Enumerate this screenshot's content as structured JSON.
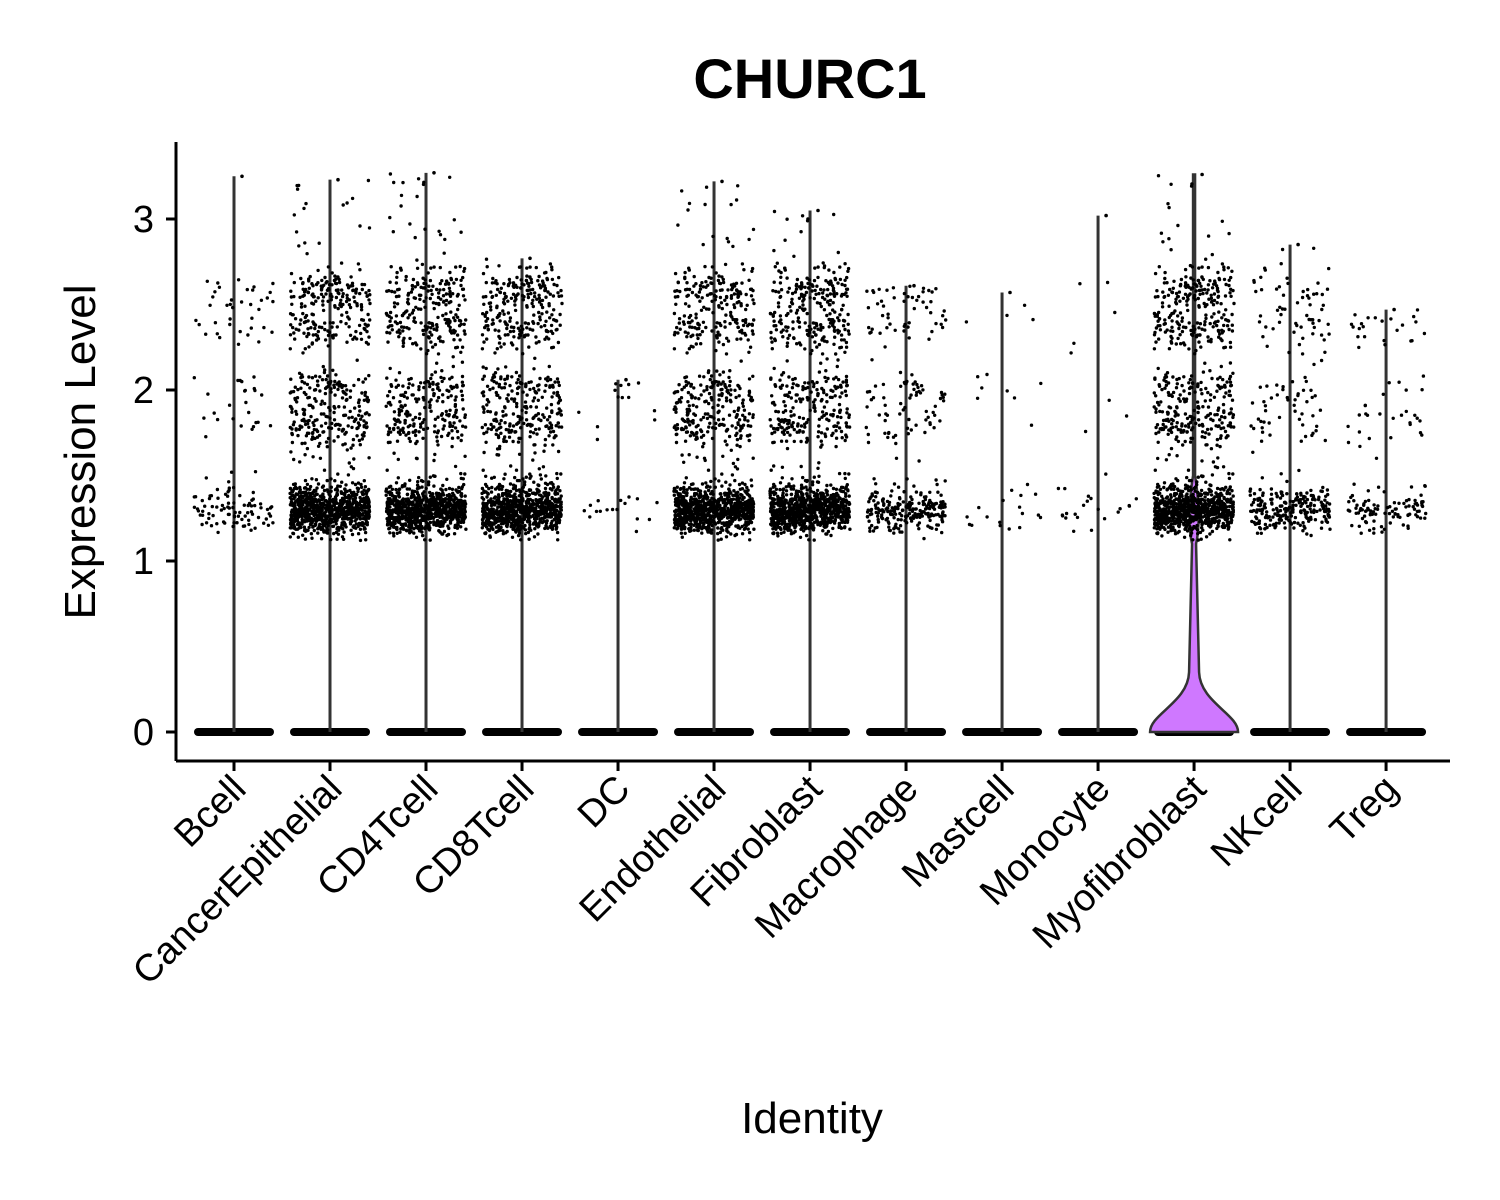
{
  "chart_data": {
    "type": "violin",
    "title": "CHURC1",
    "xlabel": "Identity",
    "ylabel": "Expression Level",
    "ylim": [
      -0.15,
      3.45
    ],
    "yticks": [
      0,
      1,
      2,
      3
    ],
    "categories": [
      "Bcell",
      "CancerEpithelial",
      "CD4Tcell",
      "CD8Tcell",
      "DC",
      "Endothelial",
      "Fibroblast",
      "Macrophage",
      "Mastcell",
      "Monocyte",
      "Myofibroblast",
      "NKcell",
      "Treg"
    ],
    "violins": [
      {
        "category": "Bcell",
        "max": 3.25,
        "fill": "none",
        "nonzero_density": "low"
      },
      {
        "category": "CancerEpithelial",
        "max": 3.23,
        "fill": "none",
        "nonzero_density": "high"
      },
      {
        "category": "CD4Tcell",
        "max": 3.27,
        "fill": "none",
        "nonzero_density": "high"
      },
      {
        "category": "CD8Tcell",
        "max": 2.77,
        "fill": "none",
        "nonzero_density": "high"
      },
      {
        "category": "DC",
        "max": 2.06,
        "fill": "none",
        "nonzero_density": "very low"
      },
      {
        "category": "Endothelial",
        "max": 3.22,
        "fill": "none",
        "nonzero_density": "high"
      },
      {
        "category": "Fibroblast",
        "max": 3.05,
        "fill": "none",
        "nonzero_density": "high"
      },
      {
        "category": "Macrophage",
        "max": 2.61,
        "fill": "none",
        "nonzero_density": "medium"
      },
      {
        "category": "Mastcell",
        "max": 2.57,
        "fill": "none",
        "nonzero_density": "very low"
      },
      {
        "category": "Monocyte",
        "max": 3.02,
        "fill": "none",
        "nonzero_density": "very low"
      },
      {
        "category": "Myofibroblast",
        "max": 3.26,
        "fill": "#CF78FF",
        "nonzero_density": "high"
      },
      {
        "category": "NKcell",
        "max": 2.85,
        "fill": "none",
        "nonzero_density": "medium"
      },
      {
        "category": "Treg",
        "max": 2.47,
        "fill": "none",
        "nonzero_density": "low"
      }
    ],
    "point_bands": [
      1.3,
      1.8,
      2.0,
      2.35,
      2.58
    ],
    "point_color": "#000000",
    "violin_outline_color": "#333333",
    "grid": false,
    "legend": "none"
  }
}
